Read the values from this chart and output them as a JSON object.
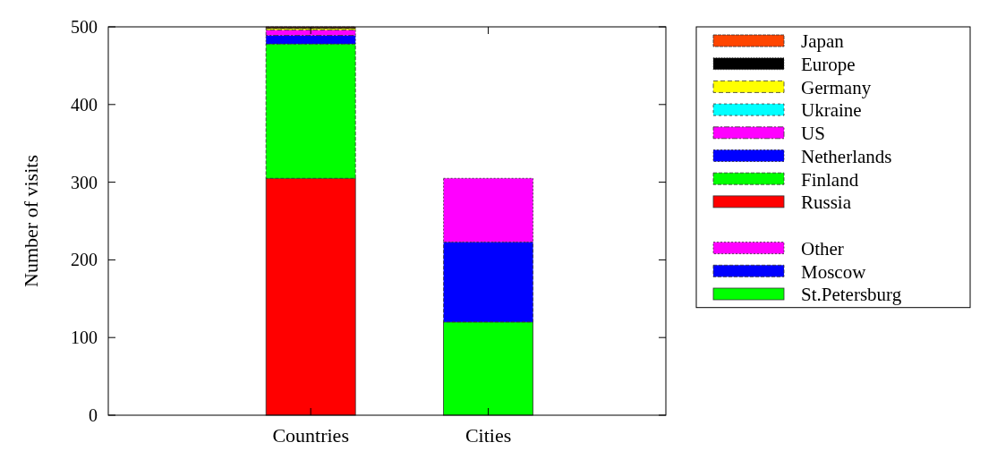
{
  "chart_data": {
    "type": "bar",
    "stacked": true,
    "ylabel": "Number of visits",
    "categories": [
      "Countries",
      "Cities"
    ],
    "ylim": [
      0,
      500
    ],
    "yticks": [
      0,
      100,
      200,
      300,
      400,
      500
    ],
    "legend": "right",
    "series": [
      {
        "name": "Russia",
        "color": "#ff0000",
        "values": [
          305,
          null
        ]
      },
      {
        "name": "Finland",
        "color": "#00ff00",
        "values": [
          173,
          null
        ]
      },
      {
        "name": "Netherlands",
        "color": "#0000ff",
        "values": [
          11,
          null
        ]
      },
      {
        "name": "US",
        "color": "#ff00ff",
        "values": [
          7,
          null
        ]
      },
      {
        "name": "Ukraine",
        "color": "#00ffff",
        "values": [
          null,
          null
        ]
      },
      {
        "name": "Germany",
        "color": "#ffff00",
        "values": [
          2,
          null
        ]
      },
      {
        "name": "Europe",
        "color": "#000000",
        "values": [
          1,
          null
        ]
      },
      {
        "name": "Japan",
        "color": "#ff4500",
        "values": [
          1,
          null
        ]
      },
      {
        "name": "St.Petersburg",
        "color": "#00ff00",
        "values": [
          null,
          120
        ]
      },
      {
        "name": "Moscow",
        "color": "#0000ff",
        "values": [
          null,
          103
        ]
      },
      {
        "name": "Other",
        "color": "#ff00ff",
        "values": [
          null,
          82
        ]
      }
    ]
  }
}
